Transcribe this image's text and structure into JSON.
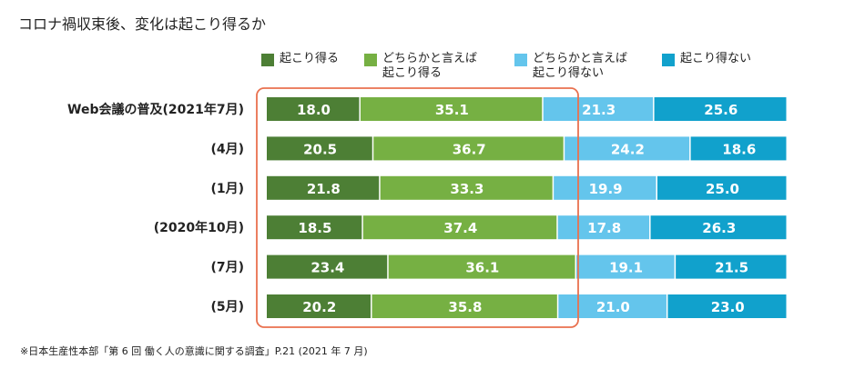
{
  "title": "コロナ禍収束後、変化は起こり得るか",
  "footnote": "※日本生産性本部「第 6 回 働く人の意識に関する調査」P.21 (2021 年 7 月)",
  "colors": {
    "series1": "#4d7f35",
    "series2": "#76b043",
    "series3": "#64c5ec",
    "series4": "#11a1cc",
    "highlight": "#e9714f"
  },
  "legend": [
    {
      "line1": "起こり得る",
      "line2": ""
    },
    {
      "line1": "どちらかと言えば",
      "line2": "起こり得る"
    },
    {
      "line1": "どちらかと言えば",
      "line2": "起こり得ない"
    },
    {
      "line1": "起こり得ない",
      "line2": ""
    }
  ],
  "chart_data": {
    "type": "bar",
    "orientation": "horizontal",
    "stacked": true,
    "percent_stacked": true,
    "categories": [
      "Web会議の普及(2021年7月)",
      "(4月)",
      "(1月)",
      "(2020年10月)",
      "(7月)",
      "(5月)"
    ],
    "series": [
      {
        "name": "起こり得る",
        "values": [
          18.0,
          20.5,
          21.8,
          18.5,
          23.4,
          20.2
        ]
      },
      {
        "name": "どちらかと言えば起こり得る",
        "values": [
          35.1,
          36.7,
          33.3,
          37.4,
          36.1,
          35.8
        ]
      },
      {
        "name": "どちらかと言えば起こり得ない",
        "values": [
          21.3,
          24.2,
          19.9,
          17.8,
          19.1,
          21.0
        ]
      },
      {
        "name": "起こり得ない",
        "values": [
          25.6,
          18.6,
          25.0,
          26.3,
          21.5,
          23.0
        ]
      }
    ],
    "data_labels": true,
    "legend_position": "top",
    "highlight_box": "first two series"
  }
}
